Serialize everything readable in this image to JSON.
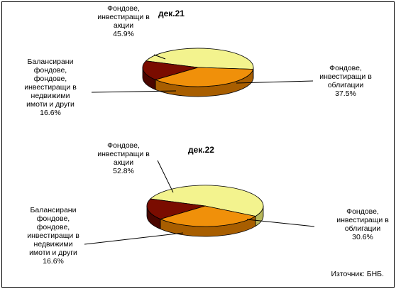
{
  "chart_data": [
    {
      "type": "pie",
      "title": "дек.21",
      "slices": [
        {
          "label_lines": [
            "Фондове,",
            "инвестиращи в",
            "акции"
          ],
          "value": 45.9,
          "value_text": "45.9%",
          "color": "#f3f38e",
          "side_color": "#b7b75a"
        },
        {
          "label_lines": [
            "Фондове,",
            "инвестиращи в",
            "облигации"
          ],
          "value": 37.5,
          "value_text": "37.5%",
          "color": "#f0900a",
          "side_color": "#a85e00"
        },
        {
          "label_lines": [
            "Балансирани",
            "фондове,",
            "фондове,",
            "инвестиращи в",
            "недвижими",
            "имоти и други"
          ],
          "value": 16.6,
          "value_text": "16.6%",
          "color": "#7a0c00",
          "side_color": "#4a0600"
        }
      ]
    },
    {
      "type": "pie",
      "title": "дек.22",
      "slices": [
        {
          "label_lines": [
            "Фондове,",
            "инвестиращи в",
            "акции"
          ],
          "value": 52.8,
          "value_text": "52.8%",
          "color": "#f3f38e",
          "side_color": "#b7b75a"
        },
        {
          "label_lines": [
            "Фондове,",
            "инвестиращи в",
            "облигации"
          ],
          "value": 30.6,
          "value_text": "30.6%",
          "color": "#f0900a",
          "side_color": "#a85e00"
        },
        {
          "label_lines": [
            "Балансирани",
            "фондове,",
            "фондове,",
            "инвестиращи в",
            "недвижими",
            "имоти и други"
          ],
          "value": 16.6,
          "value_text": "16.6%",
          "color": "#7a0c00",
          "side_color": "#4a0600"
        }
      ]
    }
  ],
  "source": "Източник: БНБ."
}
